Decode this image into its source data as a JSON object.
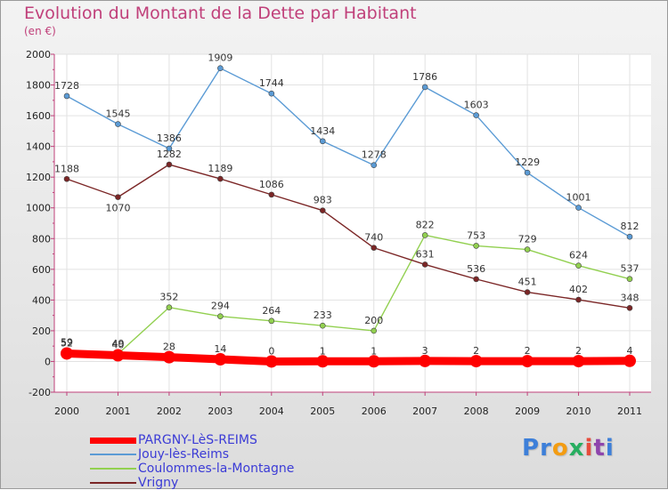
{
  "chart_data": {
    "type": "line",
    "title": "Evolution du Montant de la Dette par Habitant",
    "subtitle": "(en €)",
    "x": [
      "2000",
      "2001",
      "2002",
      "2003",
      "2004",
      "2005",
      "2006",
      "2007",
      "2008",
      "2009",
      "2010",
      "2011"
    ],
    "y_ticks": [
      "2000",
      "1800",
      "1600",
      "1400",
      "1200",
      "1000",
      "800",
      "600",
      "400",
      "200",
      "0",
      "-200"
    ],
    "ylim": [
      -200,
      2000
    ],
    "grid": true,
    "legend_position": "bottom-left",
    "series": [
      {
        "name": "PARGNY-LèS-REIMS",
        "color": "#ff0000",
        "values": [
          52,
          40,
          28,
          14,
          0,
          1,
          1,
          3,
          2,
          2,
          2,
          4
        ],
        "labels": [
          "52",
          "40",
          "28",
          "14",
          "0",
          "1",
          "1",
          "3",
          "2",
          "2",
          "2",
          "4"
        ],
        "label_positions": [
          "above",
          "above",
          "above",
          "above",
          "above",
          "above",
          "above",
          "above",
          "above",
          "above",
          "above",
          "above"
        ]
      },
      {
        "name": "Jouy-lès-Reims",
        "color": "#5b9bd5",
        "values": [
          1728,
          1545,
          1386,
          1909,
          1744,
          1434,
          1278,
          1786,
          1603,
          1229,
          1001,
          812
        ],
        "labels": [
          "1728",
          "1545",
          "1386",
          "1909",
          "1744",
          "1434",
          "1278",
          "1786",
          "1603",
          "1229",
          "1001",
          "812"
        ],
        "label_positions": [
          "above",
          "above",
          "above",
          "above",
          "above",
          "above",
          "above",
          "above",
          "above",
          "above",
          "above",
          "above"
        ]
      },
      {
        "name": "Coulommes-la-Montagne",
        "color": "#92d050",
        "values": [
          59,
          49,
          352,
          294,
          264,
          233,
          200,
          822,
          753,
          729,
          624,
          537
        ],
        "labels": [
          "59",
          "49",
          "352",
          "294",
          "264",
          "233",
          "200",
          "822",
          "753",
          "729",
          "624",
          "537"
        ],
        "label_positions": [
          "above",
          "above",
          "above",
          "above",
          "above",
          "above",
          "above",
          "above",
          "above",
          "above",
          "above",
          "above"
        ]
      },
      {
        "name": "Vrigny",
        "color": "#7b2626",
        "values": [
          1188,
          1070,
          1282,
          1189,
          1086,
          983,
          740,
          631,
          536,
          451,
          402,
          348
        ],
        "labels": [
          "1188",
          "1070",
          "1282",
          "1189",
          "1086",
          "983",
          "740",
          "631",
          "536",
          "451",
          "402",
          "348"
        ],
        "label_positions": [
          "above",
          "below",
          "above",
          "above",
          "above",
          "above",
          "above",
          "above",
          "above",
          "above",
          "above",
          "above"
        ]
      }
    ]
  },
  "logo": {
    "letters": [
      "P",
      "r",
      "o",
      "x",
      "i",
      "t",
      "i"
    ],
    "colors": [
      "#3d7fd9",
      "#3d7fd9",
      "#f39c12",
      "#27ae60",
      "#e74c3c",
      "#8e44ad",
      "#3d7fd9"
    ]
  }
}
